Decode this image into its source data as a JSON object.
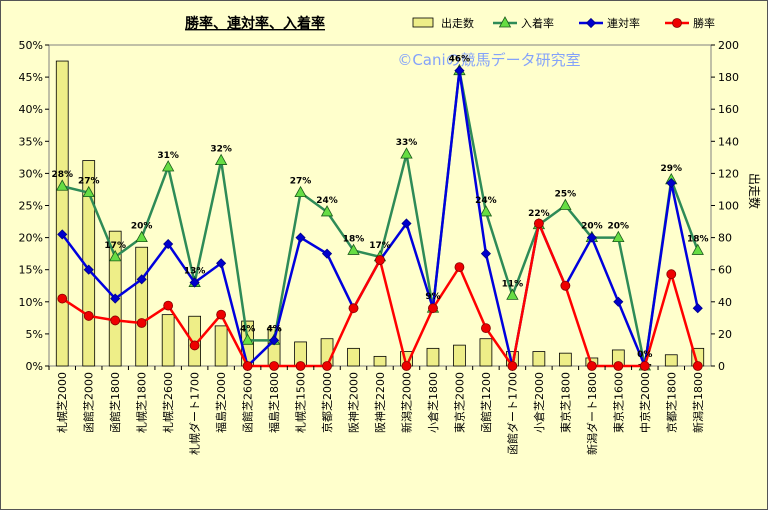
{
  "chart_data": {
    "type": "bar",
    "title": "勝率、連対率、入着率",
    "watermark": "©Caniの競馬データ研究室",
    "categories": [
      "札幌芝2000",
      "函館芝2000",
      "函館芝1800",
      "札幌芝1800",
      "札幌芝2600",
      "札幌ダート1700",
      "福島芝2000",
      "函館芝2600",
      "福島芝1800",
      "札幌芝1500",
      "京都芝2000",
      "阪神芝2000",
      "阪神芝2200",
      "新潟芝2000",
      "小倉芝1800",
      "東京芝2000",
      "函館芝1200",
      "函館ダート1700",
      "小倉芝2000",
      "東京芝1800",
      "新潟ダート1800",
      "東京芝1600",
      "中京芝2000",
      "京都芝1800",
      "新潟芝1800"
    ],
    "series": [
      {
        "name": "出走数",
        "type": "bar",
        "axis": "right",
        "color": "#eeee88",
        "values": [
          190,
          128,
          84,
          74,
          32,
          31,
          25,
          28,
          24,
          15,
          17,
          11,
          6,
          9,
          11,
          13,
          17,
          9,
          9,
          8,
          5,
          10,
          1,
          7,
          11
        ]
      },
      {
        "name": "入着率",
        "type": "line",
        "axis": "left",
        "color": "#2e8b57",
        "marker": "triangle",
        "marker_color": "#66dd44",
        "values": [
          28,
          27,
          17,
          20,
          31,
          13,
          32,
          4,
          4,
          27,
          24,
          18,
          17,
          33,
          9,
          46,
          24,
          11,
          22,
          25,
          20,
          20,
          0,
          29,
          18
        ]
      },
      {
        "name": "連対率",
        "type": "line",
        "axis": "left",
        "color": "#0000dd",
        "marker": "diamond",
        "marker_color": "#0000cc",
        "values": [
          20.5,
          15,
          10.5,
          13.5,
          19,
          13,
          16,
          0,
          4,
          20,
          17.5,
          9,
          16.5,
          22.2,
          9,
          46,
          17.5,
          0,
          22.2,
          12.5,
          20,
          10,
          0,
          28.5,
          9
        ]
      },
      {
        "name": "勝率",
        "type": "line",
        "axis": "left",
        "color": "#ff0000",
        "marker": "circle",
        "marker_color": "#ee0000",
        "values": [
          10.5,
          7.8,
          7.1,
          6.7,
          9.4,
          3.2,
          8,
          0,
          0,
          0,
          0,
          9,
          16.5,
          0,
          9,
          15.4,
          5.9,
          0,
          22.2,
          12.5,
          0,
          0,
          0,
          14.3,
          0
        ]
      }
    ],
    "data_labels": [
      "28%",
      "27%",
      "17%",
      "20%",
      "31%",
      "13%",
      "32%",
      "4%",
      "4%",
      "27%",
      "24%",
      "18%",
      "17%",
      "33%",
      "9%",
      "46%",
      "24%",
      "11%",
      "22%",
      "25%",
      "20%",
      "20%",
      "0%",
      "29%",
      "18%"
    ],
    "left_axis": {
      "ylim": [
        0,
        50
      ],
      "ticks": [
        "0%",
        "5%",
        "10%",
        "15%",
        "20%",
        "25%",
        "30%",
        "35%",
        "40%",
        "45%",
        "50%"
      ]
    },
    "right_axis": {
      "label": "出走数",
      "ylim": [
        0,
        200
      ],
      "ticks": [
        "0",
        "20",
        "40",
        "60",
        "80",
        "100",
        "120",
        "140",
        "160",
        "180",
        "200"
      ]
    },
    "legend": "top-right",
    "grid": false
  }
}
